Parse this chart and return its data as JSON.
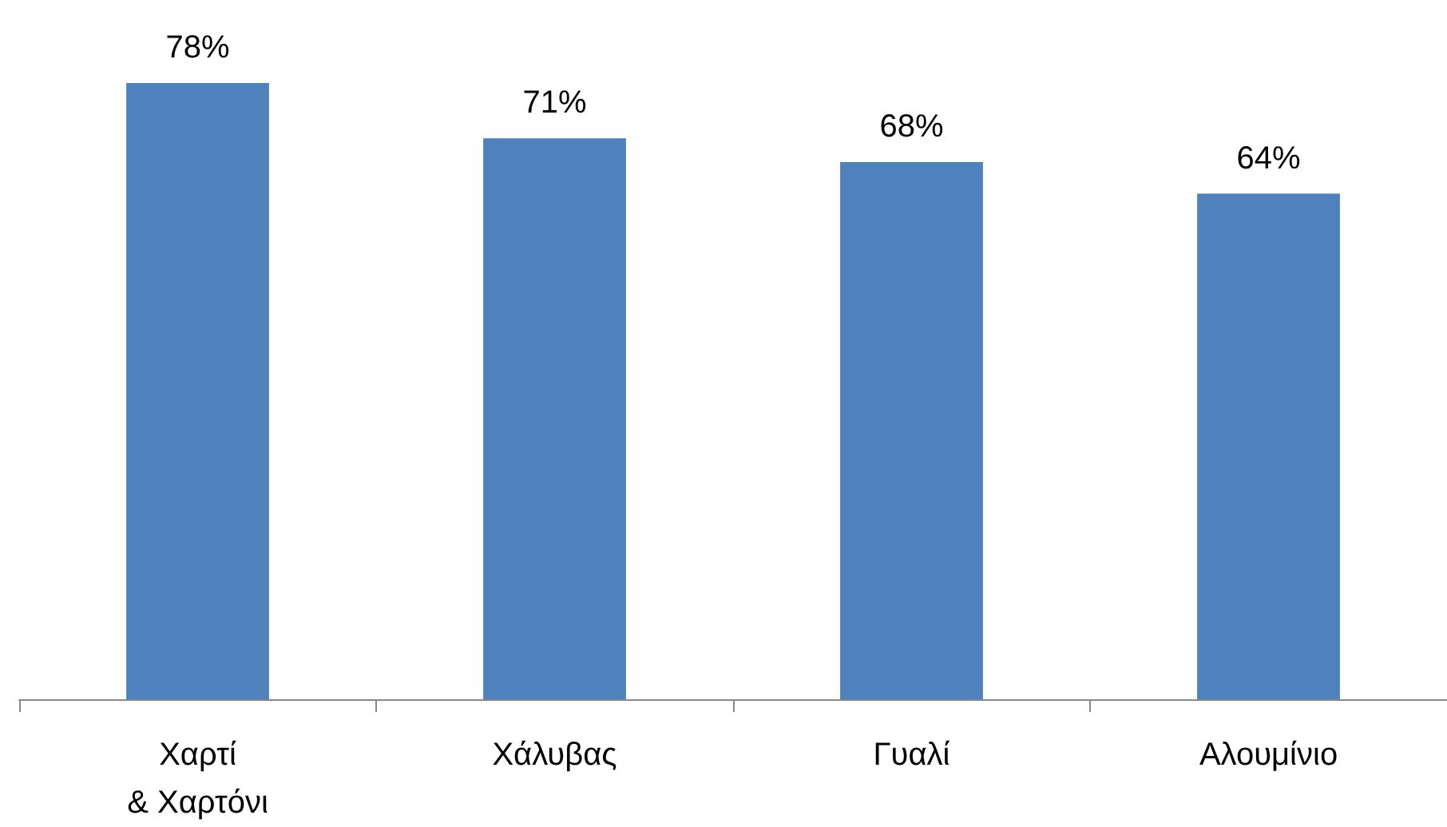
{
  "chart_data": {
    "type": "bar",
    "categories": [
      "Χαρτί\n& Χαρτόνι",
      "Χάλυβας",
      "Γυαλί",
      "Αλουμίνιο"
    ],
    "values": [
      78,
      71,
      68,
      64
    ],
    "value_labels": [
      "78%",
      "71%",
      "68%",
      "64%"
    ],
    "color": "#4f81bd",
    "tick_labels": "x"
  }
}
